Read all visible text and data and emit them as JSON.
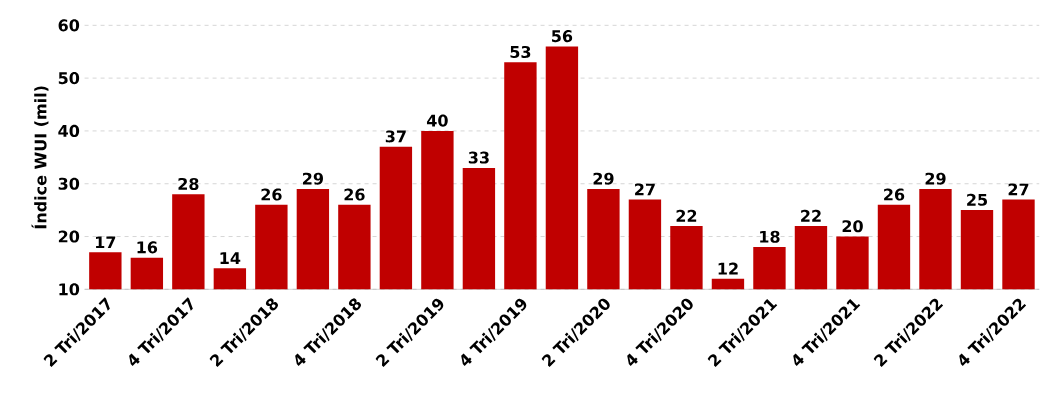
{
  "chart_data": {
    "type": "bar",
    "ylabel": "Índice WUI (mil)",
    "categories": [
      "2 Tri/2017",
      null,
      "4 Tri/2017",
      null,
      "2 Tri/2018",
      null,
      "4 Tri/2018",
      null,
      "2 Tri/2019",
      null,
      "4 Tri/2019",
      null,
      "2 Tri/2020",
      null,
      "4 Tri/2020",
      null,
      "2 Tri/2021",
      null,
      "4 Tri/2021",
      null,
      "2 Tri/2022",
      null,
      "4 Tri/2022"
    ],
    "values": [
      17,
      16,
      28,
      14,
      26,
      29,
      26,
      37,
      40,
      33,
      53,
      56,
      29,
      27,
      22,
      12,
      18,
      22,
      20,
      26,
      29,
      25,
      27
    ],
    "color": "#c00000",
    "ylim": [
      10,
      60
    ],
    "yticks": [
      10,
      20,
      30,
      40,
      50,
      60
    ],
    "grid": "y",
    "data_labels": true
  }
}
